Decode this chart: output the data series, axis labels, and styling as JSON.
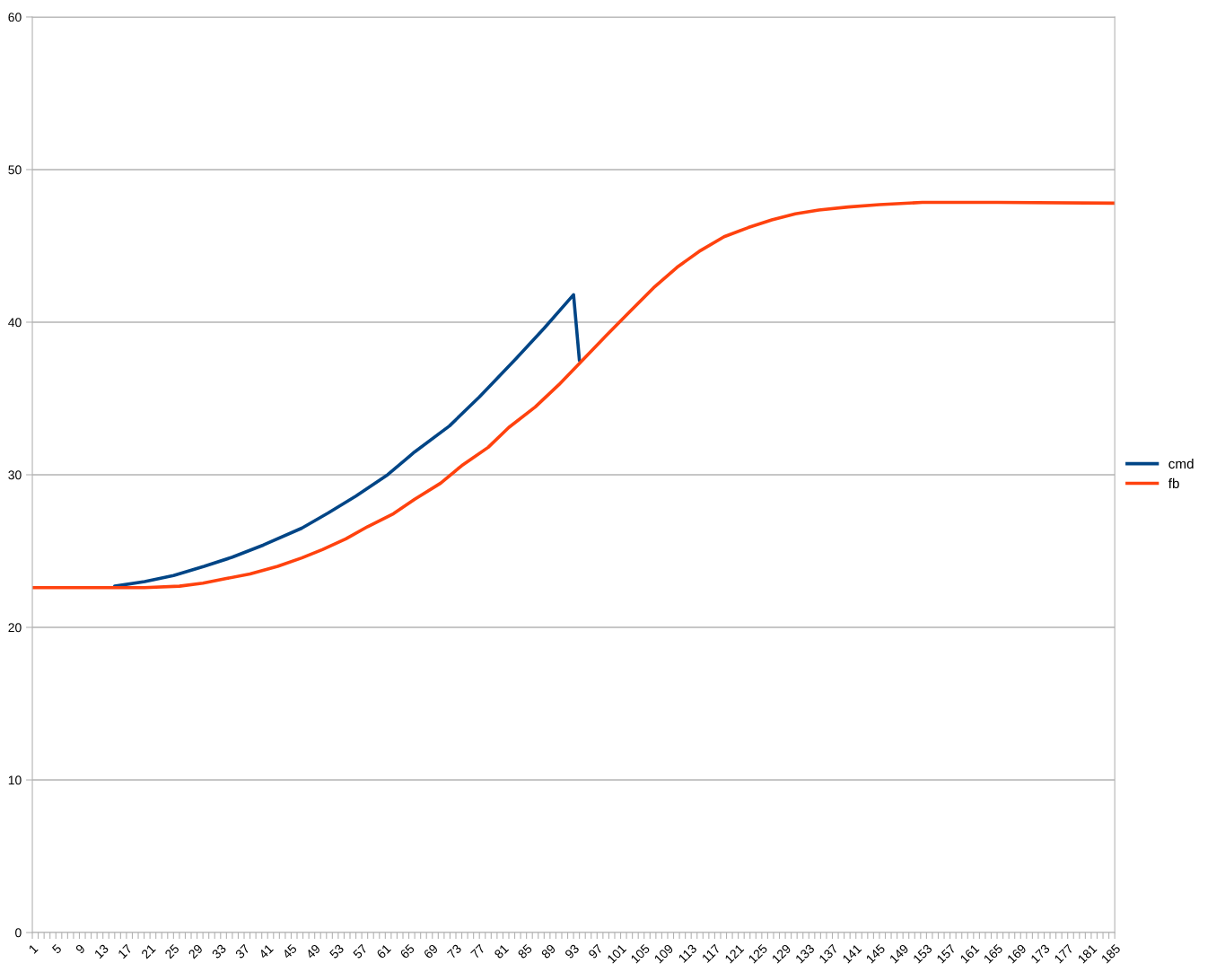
{
  "chart_data": {
    "type": "line",
    "series": [
      {
        "name": "cmd",
        "color": "#004586",
        "x": [
          15,
          20.1,
          25,
          30.2,
          35,
          40.3,
          46.8,
          51.3,
          56,
          61.4,
          66,
          71.9,
          77,
          83.2,
          88,
          93,
          94
        ],
        "values": [
          22.7,
          23.0,
          23.4,
          24.0,
          24.6,
          25.4,
          26.5,
          27.5,
          28.6,
          30.0,
          31.5,
          33.2,
          35.1,
          37.6,
          39.6,
          41.8,
          37.5
        ]
      },
      {
        "name": "fb",
        "color": "#ff420e",
        "x": [
          1,
          20,
          26,
          30,
          34,
          38,
          42.7,
          46.8,
          50.3,
          54.3,
          58,
          62.4,
          66,
          70.4,
          74,
          78.5,
          82,
          86.5,
          90.5,
          94.5,
          98.5,
          102.6,
          106.6,
          110.6,
          114.6,
          118.6,
          122.7,
          126.7,
          130.7,
          134.7,
          139.7,
          145,
          152.3,
          165,
          185
        ],
        "values": [
          22.6,
          22.6,
          22.7,
          22.9,
          23.2,
          23.5,
          24.0,
          24.55,
          25.1,
          25.8,
          26.6,
          27.45,
          28.4,
          29.45,
          30.6,
          31.8,
          33.1,
          34.45,
          35.9,
          37.5,
          39.1,
          40.7,
          42.25,
          43.6,
          44.7,
          45.6,
          46.2,
          46.7,
          47.1,
          47.35,
          47.55,
          47.7,
          47.85,
          47.85,
          47.8
        ]
      }
    ],
    "xlim": [
      1,
      185
    ],
    "xticks": [
      1,
      {
        "value": 2,
        "label": null
      },
      {
        "value": 3,
        "label": null
      },
      {
        "value": 4,
        "label": null
      },
      5,
      {
        "value": 6,
        "label": null
      },
      {
        "value": 7,
        "label": null
      },
      {
        "value": 8,
        "label": null
      },
      9,
      {
        "value": 10,
        "label": null
      },
      {
        "value": 11,
        "label": null
      },
      {
        "value": 12,
        "label": null
      },
      13,
      {
        "value": 14,
        "label": null
      },
      {
        "value": 15,
        "label": null
      },
      {
        "value": 16,
        "label": null
      },
      17,
      {
        "value": 18,
        "label": null
      },
      {
        "value": 19,
        "label": null
      },
      {
        "value": 20,
        "label": null
      },
      21,
      {
        "value": 22,
        "label": null
      },
      {
        "value": 23,
        "label": null
      },
      {
        "value": 24,
        "label": null
      },
      25,
      {
        "value": 26,
        "label": null
      },
      {
        "value": 27,
        "label": null
      },
      {
        "value": 28,
        "label": null
      },
      29,
      {
        "value": 30,
        "label": null
      },
      {
        "value": 31,
        "label": null
      },
      {
        "value": 32,
        "label": null
      },
      33,
      {
        "value": 34,
        "label": null
      },
      {
        "value": 35,
        "label": null
      },
      {
        "value": 36,
        "label": null
      },
      37,
      {
        "value": 38,
        "label": null
      },
      {
        "value": 39,
        "label": null
      },
      {
        "value": 40,
        "label": null
      },
      41,
      {
        "value": 42,
        "label": null
      },
      {
        "value": 43,
        "label": null
      },
      {
        "value": 44,
        "label": null
      },
      45,
      {
        "value": 46,
        "label": null
      },
      {
        "value": 47,
        "label": null
      },
      {
        "value": 48,
        "label": null
      },
      49,
      {
        "value": 50,
        "label": null
      },
      {
        "value": 51,
        "label": null
      },
      {
        "value": 52,
        "label": null
      },
      53,
      {
        "value": 54,
        "label": null
      },
      {
        "value": 55,
        "label": null
      },
      {
        "value": 56,
        "label": null
      },
      57,
      {
        "value": 58,
        "label": null
      },
      {
        "value": 59,
        "label": null
      },
      {
        "value": 60,
        "label": null
      },
      61,
      {
        "value": 62,
        "label": null
      },
      {
        "value": 63,
        "label": null
      },
      {
        "value": 64,
        "label": null
      },
      65,
      {
        "value": 66,
        "label": null
      },
      {
        "value": 67,
        "label": null
      },
      {
        "value": 68,
        "label": null
      },
      69,
      {
        "value": 70,
        "label": null
      },
      {
        "value": 71,
        "label": null
      },
      {
        "value": 72,
        "label": null
      },
      73,
      {
        "value": 74,
        "label": null
      },
      {
        "value": 75,
        "label": null
      },
      {
        "value": 76,
        "label": null
      },
      77,
      {
        "value": 78,
        "label": null
      },
      {
        "value": 79,
        "label": null
      },
      {
        "value": 80,
        "label": null
      },
      81,
      {
        "value": 82,
        "label": null
      },
      {
        "value": 83,
        "label": null
      },
      {
        "value": 84,
        "label": null
      },
      85,
      {
        "value": 86,
        "label": null
      },
      {
        "value": 87,
        "label": null
      },
      {
        "value": 88,
        "label": null
      },
      89,
      {
        "value": 90,
        "label": null
      },
      {
        "value": 91,
        "label": null
      },
      {
        "value": 92,
        "label": null
      },
      93,
      {
        "value": 94,
        "label": null
      },
      {
        "value": 95,
        "label": null
      },
      {
        "value": 96,
        "label": null
      },
      97,
      {
        "value": 98,
        "label": null
      },
      {
        "value": 99,
        "label": null
      },
      {
        "value": 100,
        "label": null
      },
      101,
      {
        "value": 102,
        "label": null
      },
      {
        "value": 103,
        "label": null
      },
      {
        "value": 104,
        "label": null
      },
      105,
      {
        "value": 106,
        "label": null
      },
      {
        "value": 107,
        "label": null
      },
      {
        "value": 108,
        "label": null
      },
      109,
      {
        "value": 110,
        "label": null
      },
      {
        "value": 111,
        "label": null
      },
      {
        "value": 112,
        "label": null
      },
      113,
      {
        "value": 114,
        "label": null
      },
      {
        "value": 115,
        "label": null
      },
      {
        "value": 116,
        "label": null
      },
      117,
      {
        "value": 118,
        "label": null
      },
      {
        "value": 119,
        "label": null
      },
      {
        "value": 120,
        "label": null
      },
      121,
      {
        "value": 122,
        "label": null
      },
      {
        "value": 123,
        "label": null
      },
      {
        "value": 124,
        "label": null
      },
      125,
      {
        "value": 126,
        "label": null
      },
      {
        "value": 127,
        "label": null
      },
      {
        "value": 128,
        "label": null
      },
      129,
      {
        "value": 130,
        "label": null
      },
      {
        "value": 131,
        "label": null
      },
      {
        "value": 132,
        "label": null
      },
      133,
      {
        "value": 134,
        "label": null
      },
      {
        "value": 135,
        "label": null
      },
      {
        "value": 136,
        "label": null
      },
      137,
      {
        "value": 138,
        "label": null
      },
      {
        "value": 139,
        "label": null
      },
      {
        "value": 140,
        "label": null
      },
      141,
      {
        "value": 142,
        "label": null
      },
      {
        "value": 143,
        "label": null
      },
      {
        "value": 144,
        "label": null
      },
      145,
      {
        "value": 146,
        "label": null
      },
      {
        "value": 147,
        "label": null
      },
      {
        "value": 148,
        "label": null
      },
      149,
      {
        "value": 150,
        "label": null
      },
      {
        "value": 151,
        "label": null
      },
      {
        "value": 152,
        "label": null
      },
      153,
      {
        "value": 154,
        "label": null
      },
      {
        "value": 155,
        "label": null
      },
      {
        "value": 156,
        "label": null
      },
      157,
      {
        "value": 158,
        "label": null
      },
      {
        "value": 159,
        "label": null
      },
      {
        "value": 160,
        "label": null
      },
      161,
      {
        "value": 162,
        "label": null
      },
      {
        "value": 163,
        "label": null
      },
      {
        "value": 164,
        "label": null
      },
      165,
      {
        "value": 166,
        "label": null
      },
      {
        "value": 167,
        "label": null
      },
      {
        "value": 168,
        "label": null
      },
      169,
      {
        "value": 170,
        "label": null
      },
      {
        "value": 171,
        "label": null
      },
      {
        "value": 172,
        "label": null
      },
      173,
      {
        "value": 174,
        "label": null
      },
      {
        "value": 175,
        "label": null
      },
      {
        "value": 176,
        "label": null
      },
      177,
      {
        "value": 178,
        "label": null
      },
      {
        "value": 179,
        "label": null
      },
      {
        "value": 180,
        "label": null
      },
      181,
      {
        "value": 182,
        "label": null
      },
      {
        "value": 183,
        "label": null
      },
      {
        "value": 184,
        "label": null
      },
      185
    ],
    "ylim": [
      0,
      60
    ],
    "yticks": [
      0,
      10,
      20,
      30,
      40,
      50,
      60
    ],
    "grid": "y",
    "legend": "right",
    "marker": "none",
    "line_style": "solid"
  }
}
